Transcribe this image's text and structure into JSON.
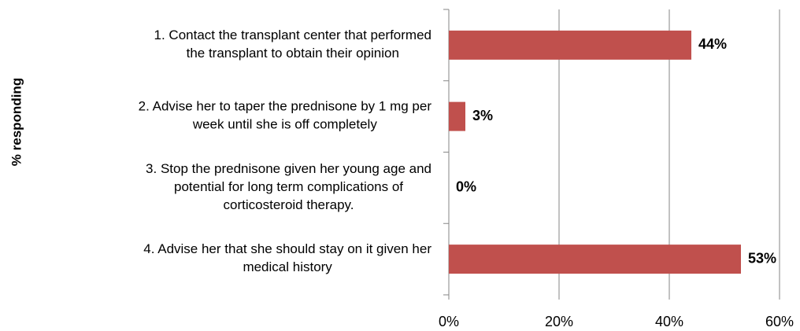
{
  "chart_data": {
    "type": "bar",
    "orientation": "horizontal",
    "y_label": "% responding",
    "categories": [
      "1. Contact the transplant center that performed the transplant to obtain their opinion",
      "2. Advise her to taper the prednisone by 1 mg per week until she is off completely",
      "3. Stop the prednisone given her young age and potential for long term complications of corticosteroid therapy.",
      "4. Advise her that she should stay on it given her medical history"
    ],
    "values": [
      44,
      3,
      0,
      53
    ],
    "value_labels": [
      "44%",
      "3%",
      "0%",
      "53%"
    ],
    "color": "#c0504d",
    "xlim": [
      0,
      60
    ],
    "xticks": [
      {
        "value": 0,
        "label": "0%"
      },
      {
        "value": 20,
        "label": "20%"
      },
      {
        "value": 40,
        "label": "40%"
      },
      {
        "value": 60,
        "label": "60%"
      }
    ],
    "grid": true
  }
}
